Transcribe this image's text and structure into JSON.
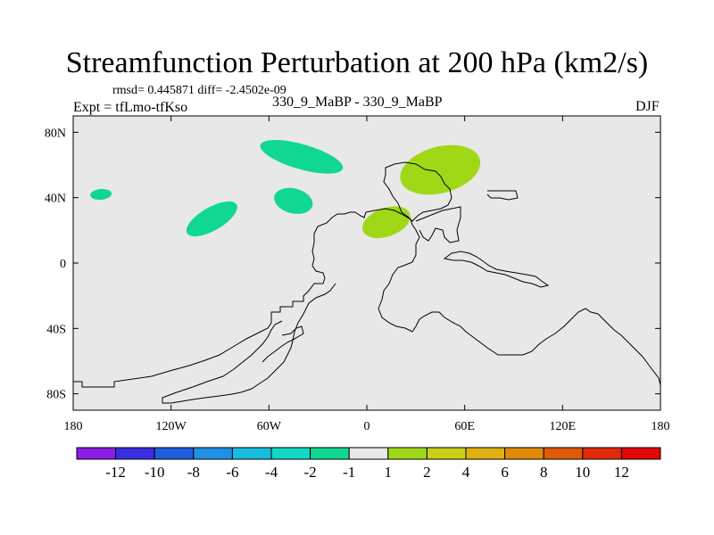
{
  "chart_data": {
    "type": "heatmap",
    "title": "Streamfunction Perturbation at 200 hPa (km2/s)",
    "stats_line": "rmsd= 0.445871 diff= -2.4502e-09",
    "left_string": "Expt = tfLmo-tfKso",
    "center_string": "330_9_MaBP - 330_9_MaBP",
    "right_string": "DJF",
    "x_axis": {
      "range": [
        -180,
        180
      ],
      "ticks": [
        -180,
        -120,
        -60,
        0,
        60,
        120,
        180
      ],
      "tick_labels": [
        "180",
        "120W",
        "60W",
        "0",
        "60E",
        "120E",
        "180"
      ]
    },
    "y_axis": {
      "range": [
        -90,
        90
      ],
      "ticks": [
        80,
        40,
        0,
        -40,
        -80
      ],
      "tick_labels": [
        "80N",
        "40N",
        "0",
        "40S",
        "80S"
      ]
    },
    "colorbar": {
      "labels": [
        "-12",
        "-10",
        "-8",
        "-6",
        "-4",
        "-2",
        "-1",
        "1",
        "2",
        "4",
        "6",
        "8",
        "10",
        "12"
      ],
      "colors": [
        "#8a1ee8",
        "#3a2ee0",
        "#1e5fe0",
        "#1e90e6",
        "#16bde0",
        "#12d8c8",
        "#10d890",
        "#e8e8e8",
        "#a0d818",
        "#c8d018",
        "#e0b010",
        "#e08a08",
        "#e05a08",
        "#e02a08",
        "#e00808"
      ]
    },
    "features": [
      {
        "name": "positive-anomaly-north-asia",
        "value_class": "1 to 2",
        "color": "#a0d818",
        "lon": 45,
        "lat": 57
      },
      {
        "name": "positive-anomaly-mediterranean",
        "value_class": "1 to 2",
        "color": "#a0d818",
        "lon": 12,
        "lat": 25
      },
      {
        "name": "negative-anomaly-arctic-atlantic",
        "value_class": "-2 to -1",
        "color": "#10d890",
        "lon": -40,
        "lat": 65
      },
      {
        "name": "negative-anomaly-north-atlantic",
        "value_class": "-2 to -1",
        "color": "#10d890",
        "lon": -45,
        "lat": 38
      },
      {
        "name": "negative-anomaly-north-america",
        "value_class": "-2 to -1",
        "color": "#10d890",
        "lon": -95,
        "lat": 27
      },
      {
        "name": "negative-anomaly-north-pacific",
        "value_class": "-2 to -1",
        "color": "#10d890",
        "lon": -163,
        "lat": 42
      }
    ]
  }
}
